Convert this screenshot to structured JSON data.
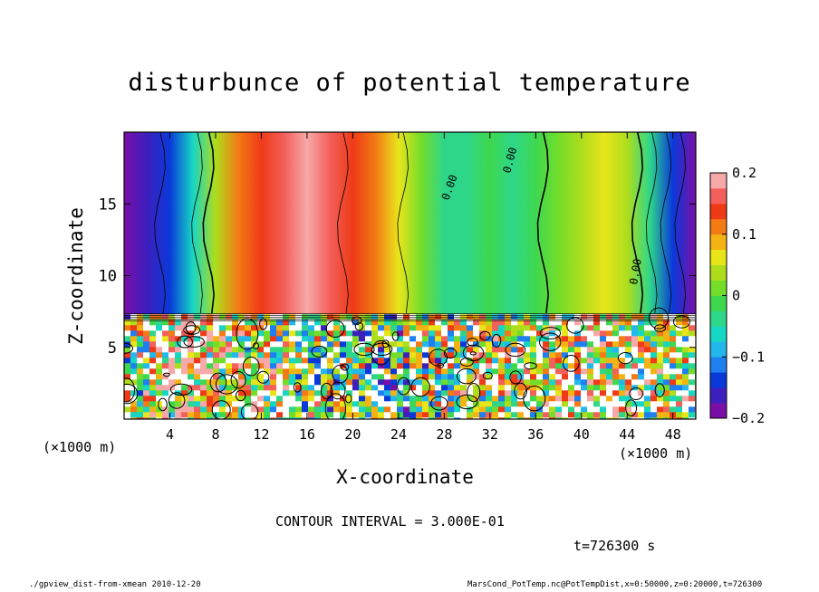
{
  "page": {
    "footer_left": "./gpview_dist-from-xmean   2010-12-20",
    "footer_right": "MarsCond_PotTemp.nc@PotTempDist,x=0:50000,z=0:20000,t=726300"
  },
  "chart_data": {
    "type": "heatmap",
    "title": "disturbunce of potential temperature",
    "xlabel": "X-coordinate",
    "ylabel": "Z-coordinate",
    "x_unit_label": "(×1000 m)",
    "x_unit_label_right": "(×1000 m)",
    "xlim": [
      0,
      50
    ],
    "ylim": [
      0,
      20
    ],
    "x_ticks": [
      4,
      8,
      12,
      16,
      20,
      24,
      28,
      32,
      36,
      40,
      44,
      48
    ],
    "y_ticks": [
      5,
      10,
      15
    ],
    "colorbar": {
      "min": -0.2,
      "max": 0.2,
      "ticks": [
        0.2,
        0.1,
        0,
        -0.1,
        -0.2
      ],
      "tick_labels": [
        "0.2",
        "0.1",
        "0",
        "−0.1",
        "−0.2"
      ],
      "colors": [
        "#7a0fa8",
        "#3d1fbd",
        "#0a39d9",
        "#1f7ef0",
        "#22b8ec",
        "#16d6c4",
        "#2ed68a",
        "#3ed84f",
        "#73dd2a",
        "#aedd1c",
        "#e9e51b",
        "#f5b313",
        "#f37a14",
        "#ee3a17",
        "#f35f5a",
        "#f7a9a9"
      ]
    },
    "contour_interval_label": "CONTOUR INTERVAL = 3.000E-01",
    "contour_labels": [
      "0.00",
      "0.00",
      "0.00",
      "0.00"
    ],
    "time_label": "t=726300 s",
    "upper_layer_profile": {
      "x": [
        0,
        2,
        4,
        6,
        8,
        10,
        12,
        14,
        16,
        18,
        20,
        22,
        24,
        26,
        28,
        30,
        32,
        34,
        36,
        38,
        40,
        42,
        44,
        46,
        48,
        50
      ],
      "value": [
        -0.2,
        -0.17,
        -0.13,
        -0.07,
        0.03,
        0.11,
        0.15,
        0.17,
        0.18,
        0.16,
        0.14,
        0.1,
        0.06,
        0.01,
        -0.03,
        -0.04,
        -0.02,
        -0.03,
        -0.01,
        0.02,
        0.04,
        0.05,
        0.03,
        -0.04,
        -0.13,
        -0.2
      ]
    },
    "layer_boundary_z": 7.3
  }
}
